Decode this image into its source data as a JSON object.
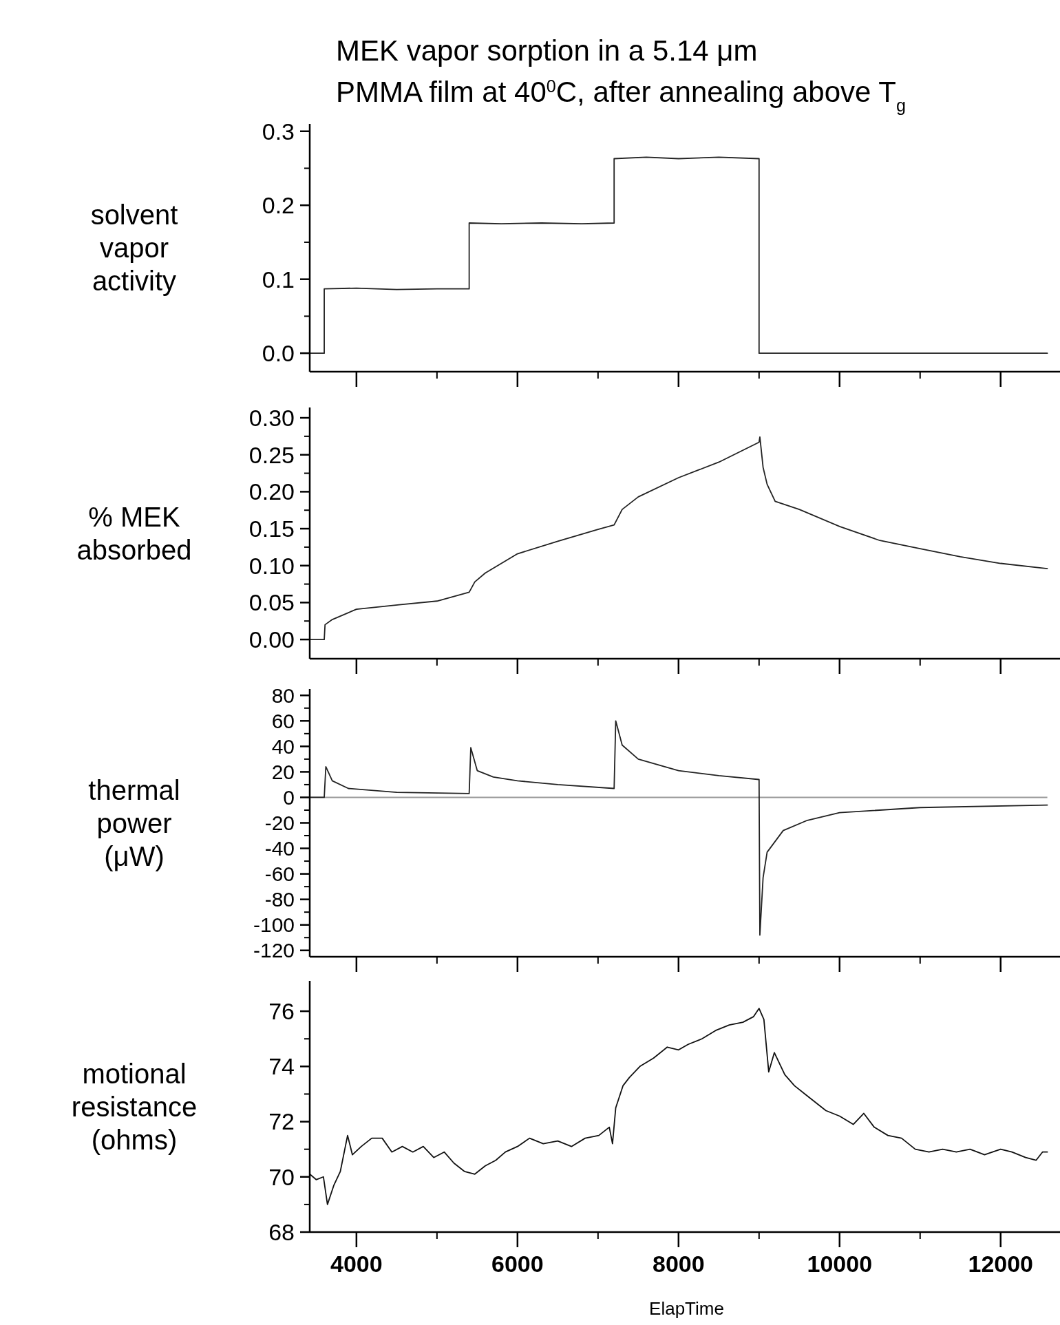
{
  "chart_data": [
    {
      "type": "line",
      "title": "MEK vapor sorption in a 5.14 μm\nPMMA film at 40$^{0}$C, after annealing above T$_{g}$",
      "ylabel": "solvent\nvapor\nactivity",
      "xlim": [
        3420,
        12780
      ],
      "xticks": [
        4000,
        6000,
        8000,
        10000,
        12000
      ],
      "ylim": [
        -0.025,
        0.31
      ],
      "yticks": [
        {
          "value": 0,
          "label": "0.0"
        },
        {
          "value": 0.1,
          "label": "0.1"
        },
        {
          "value": 0.2,
          "label": "0.2"
        },
        {
          "value": 0.3,
          "label": "0.3"
        }
      ],
      "tick_labels": "y",
      "series": [
        {
          "color": "#222222",
          "x": [
            3420,
            3600,
            3600,
            4000,
            4500,
            5000,
            5400,
            5400,
            5800,
            6300,
            6800,
            7200,
            7200,
            7600,
            8000,
            8500,
            9000,
            9000,
            10000,
            11000,
            12580
          ],
          "values": [
            0,
            0,
            0.087,
            0.088,
            0.086,
            0.087,
            0.087,
            0.176,
            0.175,
            0.176,
            0.175,
            0.176,
            0.263,
            0.265,
            0.263,
            0.265,
            0.263,
            0,
            0,
            0,
            0
          ]
        }
      ]
    },
    {
      "type": "line",
      "ylabel": "% MEK\nabsorbed",
      "xlim": [
        3420,
        12780
      ],
      "xticks": [
        4000,
        6000,
        8000,
        10000,
        12000
      ],
      "ylim": [
        -0.026,
        0.314
      ],
      "yticks": [
        {
          "value": 0,
          "label": "0.00"
        },
        {
          "value": 0.05,
          "label": "0.05"
        },
        {
          "value": 0.1,
          "label": "0.10"
        },
        {
          "value": 0.15,
          "label": "0.15"
        },
        {
          "value": 0.2,
          "label": "0.20"
        },
        {
          "value": 0.25,
          "label": "0.25"
        },
        {
          "value": 0.3,
          "label": "0.30"
        }
      ],
      "tick_labels": "y",
      "series": [
        {
          "color": "#222222",
          "x": [
            3420,
            3600,
            3610,
            3700,
            4000,
            4530,
            5000,
            5400,
            5470,
            5600,
            6000,
            6500,
            7000,
            7200,
            7300,
            7500,
            8000,
            8500,
            9000,
            9010,
            9050,
            9100,
            9200,
            9500,
            10000,
            10500,
            11000,
            11500,
            12000,
            12580
          ],
          "values": [
            0,
            0,
            0.02,
            0.027,
            0.041,
            0.047,
            0.052,
            0.064,
            0.078,
            0.09,
            0.116,
            0.133,
            0.149,
            0.155,
            0.176,
            0.193,
            0.219,
            0.24,
            0.267,
            0.274,
            0.233,
            0.21,
            0.187,
            0.176,
            0.153,
            0.134,
            0.123,
            0.112,
            0.103,
            0.096
          ]
        }
      ]
    },
    {
      "type": "line",
      "ylabel": "thermal\npower\n(μW)",
      "xlim": [
        3420,
        12780
      ],
      "xticks": [
        4000,
        6000,
        8000,
        10000,
        12000
      ],
      "ylim": [
        -125,
        85
      ],
      "yticks": [
        -120,
        -100,
        -80,
        -60,
        -40,
        -20,
        0,
        20,
        40,
        60,
        80
      ],
      "tick_labels": "y",
      "ref_lines": [
        {
          "axis": "y",
          "value": 0,
          "color": "#999999"
        }
      ],
      "series": [
        {
          "color": "#222222",
          "x": [
            3420,
            3600,
            3620,
            3700,
            3900,
            4500,
            5400,
            5420,
            5500,
            5700,
            6000,
            6500,
            7200,
            7220,
            7300,
            7500,
            8000,
            8500,
            9000,
            9010,
            9050,
            9100,
            9300,
            9600,
            10000,
            11000,
            12580
          ],
          "values": [
            0,
            0,
            24,
            13,
            7,
            4,
            3,
            39,
            21,
            16,
            13,
            10,
            7,
            60,
            41,
            30,
            21,
            17,
            14,
            -108,
            -63,
            -43,
            -26,
            -18,
            -12,
            -8,
            -6
          ]
        }
      ]
    },
    {
      "type": "line",
      "ylabel": "motional\nresistance\n(ohms)",
      "xlabel": "ElapTime",
      "xlim": [
        3420,
        12780
      ],
      "xticks": [
        4000,
        6000,
        8000,
        10000,
        12000
      ],
      "ylim": [
        68,
        77.1
      ],
      "yticks": [
        68,
        70,
        72,
        74,
        76
      ],
      "series": [
        {
          "color": "#111111",
          "x": [
            3420,
            3500,
            3590,
            3640,
            3720,
            3800,
            3890,
            3950,
            4060,
            4190,
            4320,
            4440,
            4570,
            4700,
            4830,
            4960,
            5090,
            5210,
            5340,
            5470,
            5600,
            5730,
            5850,
            6000,
            6150,
            6320,
            6500,
            6670,
            6840,
            7010,
            7140,
            7180,
            7220,
            7310,
            7390,
            7520,
            7690,
            7860,
            8000,
            8120,
            8290,
            8460,
            8630,
            8800,
            8930,
            9000,
            9060,
            9120,
            9190,
            9320,
            9440,
            9570,
            9700,
            9830,
            10000,
            10170,
            10300,
            10430,
            10600,
            10770,
            10940,
            11110,
            11280,
            11450,
            11620,
            11800,
            12000,
            12140,
            12310,
            12440,
            12520,
            12580
          ],
          "values": [
            70.1,
            69.9,
            70.0,
            69.0,
            69.7,
            70.2,
            71.5,
            70.8,
            71.1,
            71.4,
            71.4,
            70.9,
            71.1,
            70.9,
            71.1,
            70.7,
            70.9,
            70.5,
            70.2,
            70.1,
            70.4,
            70.6,
            70.9,
            71.1,
            71.4,
            71.2,
            71.3,
            71.1,
            71.4,
            71.5,
            71.8,
            71.2,
            72.5,
            73.3,
            73.6,
            74.0,
            74.3,
            74.7,
            74.6,
            74.8,
            75.0,
            75.3,
            75.5,
            75.6,
            75.8,
            76.1,
            75.7,
            73.8,
            74.5,
            73.7,
            73.3,
            73.0,
            72.7,
            72.4,
            72.2,
            71.9,
            72.3,
            71.8,
            71.5,
            71.4,
            71.0,
            70.9,
            71.0,
            70.9,
            71.0,
            70.8,
            71.0,
            70.9,
            70.7,
            70.6,
            70.9,
            70.9
          ]
        }
      ]
    }
  ]
}
